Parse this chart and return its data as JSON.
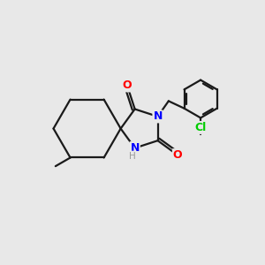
{
  "background_color": "#e8e8e8",
  "bond_color": "#1a1a1a",
  "nitrogen_color": "#0000ff",
  "oxygen_color": "#ff0000",
  "chlorine_color": "#00cc00",
  "hydrogen_color": "#999999",
  "line_width": 1.6,
  "fig_size": [
    3.0,
    3.0
  ],
  "dpi": 100,
  "xlim": [
    0,
    10
  ],
  "ylim": [
    0,
    10
  ]
}
